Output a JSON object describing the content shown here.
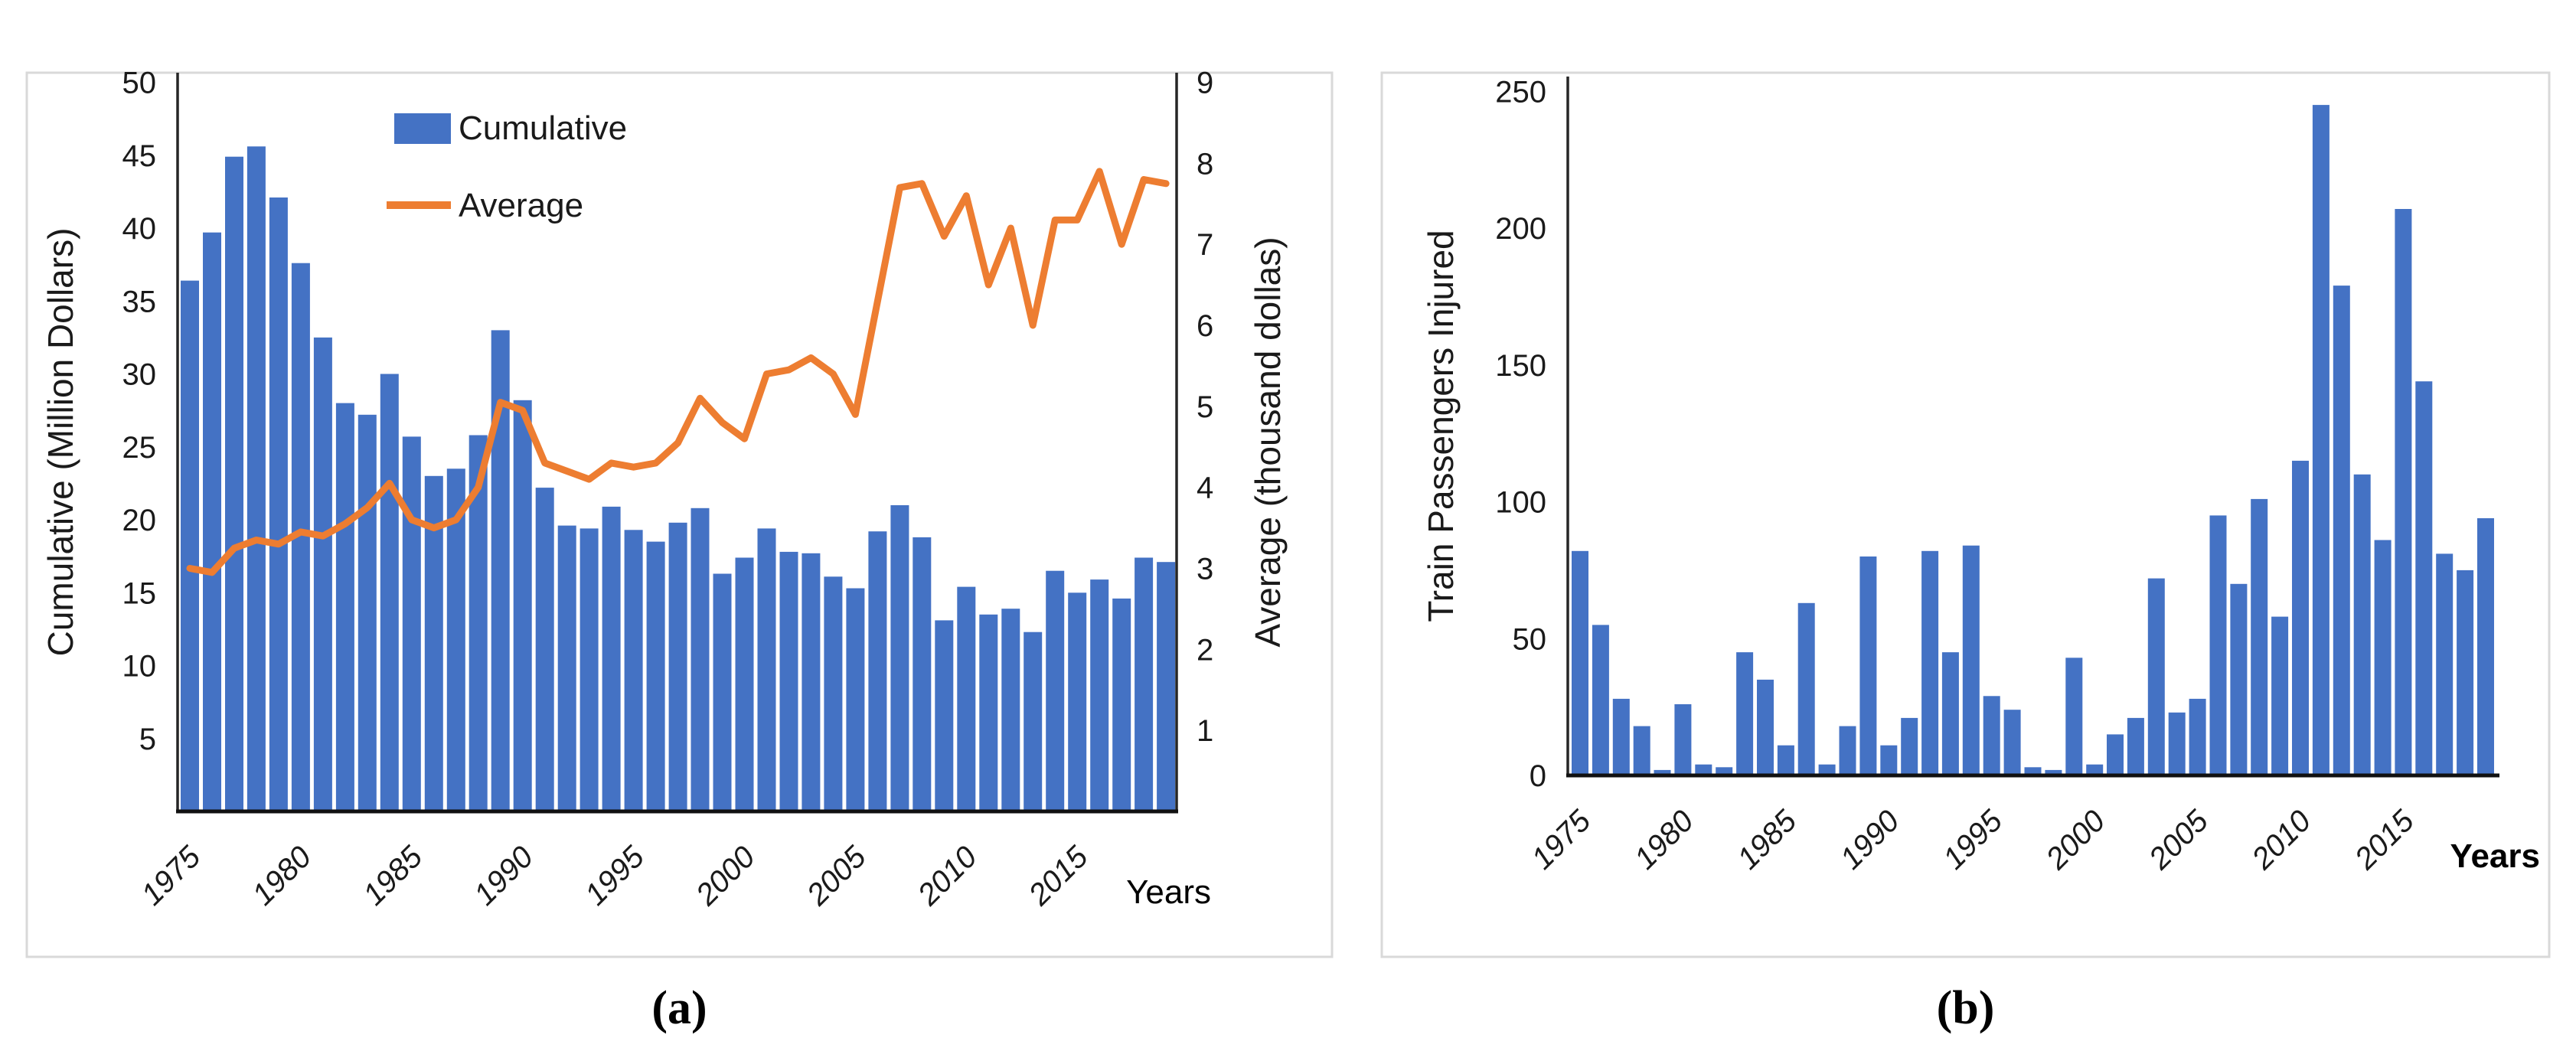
{
  "panels": {
    "a": {
      "caption": "(a)"
    },
    "b": {
      "caption": "(b)"
    }
  },
  "chart_data": [
    {
      "id": "a",
      "type": "bar",
      "subtype": "combo-bar-line",
      "categories": [
        1975,
        1976,
        1977,
        1978,
        1979,
        1980,
        1981,
        1982,
        1983,
        1984,
        1985,
        1986,
        1987,
        1988,
        1989,
        1990,
        1991,
        1992,
        1993,
        1994,
        1995,
        1996,
        1997,
        1998,
        1999,
        2000,
        2001,
        2002,
        2003,
        2004,
        2005,
        2006,
        2007,
        2008,
        2009,
        2010,
        2011,
        2012,
        2013,
        2014,
        2015,
        2016,
        2017,
        2018,
        2019
      ],
      "series": [
        {
          "name": "Cumulative",
          "type": "bar",
          "axis": "left",
          "color": "#4472C4",
          "values": [
            36.4,
            39.7,
            44.9,
            45.6,
            42.1,
            37.6,
            32.5,
            28.0,
            27.2,
            30.0,
            25.7,
            23.0,
            23.5,
            25.8,
            33.0,
            28.2,
            22.2,
            19.6,
            19.4,
            20.9,
            19.3,
            18.5,
            19.8,
            20.8,
            16.3,
            17.4,
            19.4,
            17.8,
            17.7,
            16.1,
            15.3,
            19.2,
            21.0,
            18.8,
            13.1,
            15.4,
            13.5,
            13.9,
            12.3,
            16.5,
            15.0,
            15.9,
            14.6,
            17.4,
            17.1
          ]
        },
        {
          "name": "Average",
          "type": "line",
          "axis": "right",
          "color": "#ED7D31",
          "values": [
            3.0,
            2.95,
            3.25,
            3.35,
            3.3,
            3.45,
            3.4,
            3.55,
            3.75,
            4.05,
            3.6,
            3.5,
            3.6,
            4.0,
            5.05,
            4.95,
            4.3,
            4.2,
            4.1,
            4.3,
            4.25,
            4.3,
            4.55,
            5.1,
            4.8,
            4.6,
            5.4,
            5.45,
            5.6,
            5.4,
            4.9,
            6.3,
            7.7,
            7.75,
            7.1,
            7.6,
            6.5,
            7.2,
            6.0,
            7.3,
            7.3,
            7.9,
            7.0,
            7.8,
            7.75
          ]
        }
      ],
      "left_axis": {
        "title": "Cumulative (Million Dollars)",
        "ticks": [
          5,
          10,
          15,
          20,
          25,
          30,
          35,
          40,
          45,
          50
        ],
        "range": [
          0,
          50
        ]
      },
      "right_axis": {
        "title": "Average (thousand dollas)",
        "ticks": [
          1,
          2,
          3,
          4,
          5,
          6,
          7,
          8,
          9
        ],
        "range": [
          0,
          9
        ]
      },
      "x_axis": {
        "title": "Years",
        "tick_years": [
          1975,
          1980,
          1985,
          1990,
          1995,
          2000,
          2005,
          2010,
          2015
        ]
      },
      "legend": {
        "position": "inside-top-left",
        "entries": [
          "Cumulative",
          "Average"
        ]
      },
      "grid": "off"
    },
    {
      "id": "b",
      "type": "bar",
      "categories": [
        1975,
        1976,
        1977,
        1978,
        1979,
        1980,
        1981,
        1982,
        1983,
        1984,
        1985,
        1986,
        1987,
        1988,
        1989,
        1990,
        1991,
        1992,
        1993,
        1994,
        1995,
        1996,
        1997,
        1998,
        1999,
        2000,
        2001,
        2002,
        2003,
        2004,
        2005,
        2006,
        2007,
        2008,
        2009,
        2010,
        2011,
        2012,
        2013,
        2014,
        2015,
        2016,
        2017,
        2018,
        2019
      ],
      "series": [
        {
          "name": "Train Passengers Injured",
          "type": "bar",
          "axis": "left",
          "color": "#4472C4",
          "values": [
            82,
            55,
            28,
            18,
            2,
            26,
            4,
            3,
            45,
            35,
            11,
            63,
            4,
            18,
            80,
            11,
            21,
            82,
            45,
            84,
            29,
            24,
            3,
            2,
            43,
            4,
            15,
            21,
            72,
            23,
            28,
            95,
            70,
            101,
            58,
            115,
            245,
            179,
            110,
            86,
            207,
            144,
            81,
            75,
            94
          ]
        }
      ],
      "left_axis": {
        "title": "Train Passengers Injured",
        "ticks": [
          0,
          50,
          100,
          150,
          200,
          250
        ],
        "range": [
          0,
          250
        ]
      },
      "x_axis": {
        "title": "Years",
        "tick_years": [
          1975,
          1980,
          1985,
          1990,
          1995,
          2000,
          2005,
          2010,
          2015
        ]
      },
      "legend": {
        "position": "none",
        "entries": []
      },
      "grid": "off"
    }
  ],
  "style": {
    "bar_color": "#4472C4",
    "line_color": "#ED7D31",
    "axis_color": "#262626",
    "text_color": "#1a1a1a",
    "panel_border_color": "#d9d9d9"
  }
}
